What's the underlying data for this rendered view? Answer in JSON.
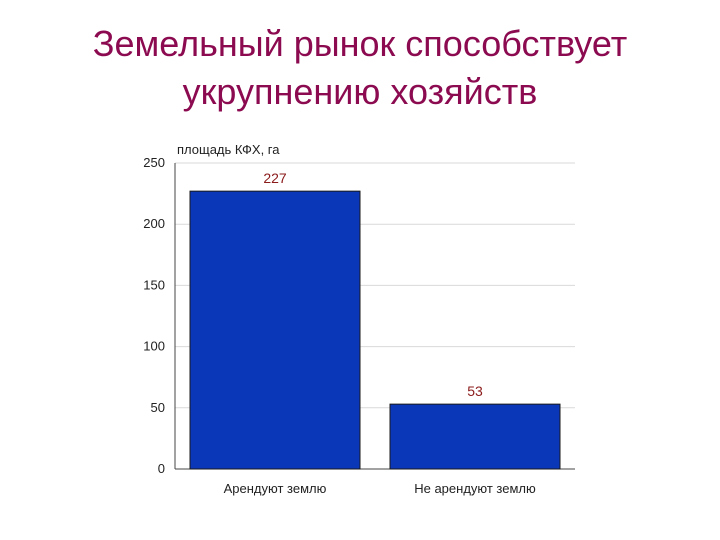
{
  "slide": {
    "title_line1": "Земельный рынок способствует",
    "title_line2": "укрупнению хозяйств",
    "title_color": "#8b0a50"
  },
  "chart_data": {
    "type": "bar",
    "categories": [
      "Арендуют землю",
      "Не арендуют землю"
    ],
    "values": [
      227,
      53
    ],
    "data_labels": [
      "227",
      "53"
    ],
    "ylabel": "площадь КФХ, га",
    "ylim": [
      0,
      250
    ],
    "yticks": [
      0,
      50,
      100,
      150,
      200,
      250
    ],
    "bar_color": "#0a37b8",
    "label_color": "#8b1a1a",
    "grid": true
  }
}
